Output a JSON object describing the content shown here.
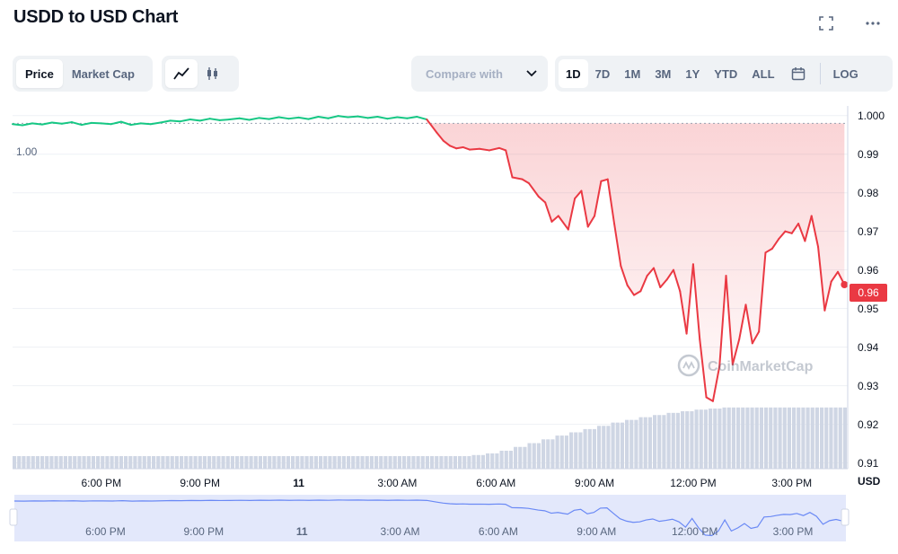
{
  "title": "USDD to USD Chart",
  "icons": {
    "fullscreen": "fullscreen-icon",
    "more": "more-icon",
    "line": "line-chart-icon",
    "candle": "candlestick-icon",
    "calendar": "calendar-icon",
    "chevron": "chevron-down-icon"
  },
  "toolbar": {
    "price_label": "Price",
    "market_cap_label": "Market Cap",
    "compare_placeholder": "Compare with",
    "ranges": [
      "1D",
      "7D",
      "1M",
      "3M",
      "1Y",
      "YTD",
      "ALL"
    ],
    "log_label": "LOG"
  },
  "colors": {
    "up": "#16c784",
    "down": "#ea3943",
    "accent": "#3861fb"
  },
  "chart_data": {
    "type": "line",
    "currency_label": "USD",
    "open_label": "1.00",
    "current_label": "0.96",
    "watermark": "CoinMarketCap",
    "y_ticks": [
      "1.000",
      "0.99",
      "0.98",
      "0.97",
      "0.96",
      "0.95",
      "0.94",
      "0.93",
      "0.92",
      "0.91"
    ],
    "ylim": [
      0.9085,
      1.0025
    ],
    "x_ticks": [
      "6:00 PM",
      "9:00 PM",
      "11",
      "3:00 AM",
      "6:00 AM",
      "9:00 AM",
      "12:00 PM",
      "3:00 PM"
    ],
    "x_tick_hours": [
      2,
      5,
      8,
      11,
      14,
      17,
      20,
      23
    ],
    "x_range_hours": [
      -0.7,
      24.7
    ],
    "open_price": 0.998,
    "series": [
      {
        "x": [
          -0.7,
          -0.4,
          -0.1,
          0.2,
          0.5,
          0.8,
          1.1,
          1.4,
          1.7,
          2.0,
          2.3,
          2.6,
          2.9,
          3.2,
          3.5,
          3.8,
          4.1,
          4.4,
          4.7,
          5.0,
          5.3,
          5.6,
          5.9,
          6.2,
          6.5,
          6.8,
          7.1,
          7.4,
          7.7,
          8.0,
          8.3,
          8.6,
          8.9,
          9.2,
          9.5,
          9.8,
          10.1,
          10.4,
          10.7,
          11.0,
          11.3,
          11.6,
          11.9,
          12.2,
          12.4,
          12.6,
          12.8,
          13.0,
          13.2,
          13.5,
          13.8,
          14.1,
          14.3,
          14.5,
          14.8,
          15.0,
          15.3,
          15.5,
          15.7,
          15.9,
          16.2,
          16.4,
          16.6,
          16.8,
          17.0,
          17.2,
          17.4,
          17.6,
          17.8,
          18.0,
          18.2,
          18.4,
          18.6,
          18.8,
          19.0,
          19.2,
          19.4,
          19.6,
          19.8,
          20.0,
          20.2,
          20.4,
          20.6,
          20.8,
          21.0,
          21.2,
          21.4,
          21.6,
          21.8,
          22.0,
          22.2,
          22.4,
          22.6,
          22.8,
          23.0,
          23.2,
          23.4,
          23.6,
          23.8,
          24.0,
          24.2,
          24.4,
          24.6
        ],
        "values": [
          0.9978,
          0.9975,
          0.998,
          0.9977,
          0.9982,
          0.9979,
          0.9983,
          0.9976,
          0.9981,
          0.998,
          0.9978,
          0.9984,
          0.9976,
          0.998,
          0.9978,
          0.9982,
          0.9987,
          0.9985,
          0.999,
          0.9987,
          0.9992,
          0.9988,
          0.999,
          0.9993,
          0.9989,
          0.9994,
          0.9991,
          0.9996,
          0.9992,
          0.9995,
          0.9991,
          0.9997,
          0.9993,
          0.9999,
          0.9996,
          0.9998,
          0.9994,
          0.9997,
          0.9992,
          0.9996,
          0.9993,
          0.9997,
          0.999,
          0.9956,
          0.9935,
          0.9922,
          0.9915,
          0.9918,
          0.9912,
          0.9914,
          0.991,
          0.9916,
          0.991,
          0.984,
          0.9835,
          0.9825,
          0.979,
          0.9775,
          0.9725,
          0.974,
          0.9705,
          0.9785,
          0.9805,
          0.9712,
          0.974,
          0.983,
          0.9835,
          0.972,
          0.961,
          0.956,
          0.9535,
          0.9545,
          0.9585,
          0.9605,
          0.9555,
          0.9575,
          0.96,
          0.9545,
          0.9435,
          0.9615,
          0.942,
          0.927,
          0.926,
          0.935,
          0.9585,
          0.9355,
          0.942,
          0.951,
          0.941,
          0.944,
          0.9645,
          0.9655,
          0.968,
          0.97,
          0.9695,
          0.972,
          0.9675,
          0.974,
          0.966,
          0.9495,
          0.957,
          0.9595,
          0.9562
        ]
      }
    ],
    "volume": [
      0.1,
      0.1,
      0.1,
      0.1,
      0.1,
      0.1,
      0.1,
      0.1,
      0.1,
      0.1,
      0.1,
      0.1,
      0.1,
      0.1,
      0.1,
      0.1,
      0.1,
      0.1,
      0.1,
      0.1,
      0.1,
      0.1,
      0.1,
      0.1,
      0.1,
      0.1,
      0.1,
      0.1,
      0.1,
      0.1,
      0.1,
      0.1,
      0.1,
      0.12,
      0.15,
      0.2,
      0.27,
      0.34,
      0.41,
      0.48,
      0.54,
      0.6,
      0.66,
      0.72,
      0.77,
      0.82,
      0.86,
      0.9,
      0.93,
      0.96,
      0.98,
      1,
      1,
      1,
      1,
      1,
      1,
      1,
      1,
      1
    ],
    "volume_max": 0.86,
    "navigator": {
      "x_ticks": [
        "6:00 PM",
        "9:00 PM",
        "11",
        "3:00 AM",
        "6:00 AM",
        "9:00 AM",
        "12:00 PM",
        "3:00 PM"
      ]
    }
  }
}
